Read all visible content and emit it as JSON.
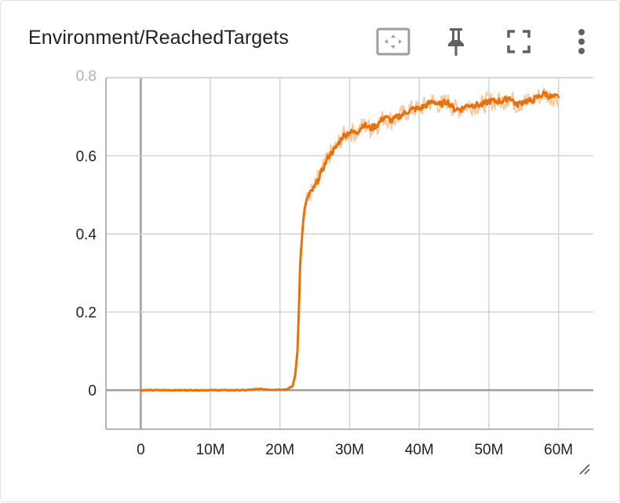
{
  "card": {
    "title": "Environment/ReachedTargets"
  },
  "toolbar": {
    "icons": [
      "fit-to-data-icon",
      "pin-icon",
      "fullscreen-icon",
      "more-vert-icon"
    ]
  },
  "colors": {
    "series": "#e8710a",
    "series_smoothed_band": "#f7c9a1",
    "grid": "#d2d2d2",
    "zero_line": "#9e9e9e",
    "axis": "#9e9e9e",
    "text": "#212121",
    "icon": "#616161"
  },
  "chart_data": {
    "type": "line",
    "title": "Environment/ReachedTargets",
    "xlabel": "",
    "ylabel": "",
    "xlim": [
      -5000000,
      65000000
    ],
    "ylim": [
      -0.1,
      0.8
    ],
    "x_ticks": [
      0,
      10000000,
      20000000,
      30000000,
      40000000,
      50000000,
      60000000
    ],
    "x_tick_labels": [
      "0",
      "10M",
      "20M",
      "30M",
      "40M",
      "50M",
      "60M"
    ],
    "y_ticks": [
      0,
      0.2,
      0.4,
      0.6,
      0.8
    ],
    "y_tick_labels": [
      "0",
      "0.2",
      "0.4",
      "0.6",
      "0.8"
    ],
    "grid": true,
    "series": [
      {
        "x": [
          0,
          5000000,
          10000000,
          15000000,
          17000000,
          19000000,
          21000000,
          21800000,
          22200000,
          22500000,
          22700000,
          22900000,
          23100000,
          23400000,
          23700000,
          24200000,
          25000000,
          26000000,
          27000000,
          28000000,
          29000000,
          30000000,
          31000000,
          32000000,
          33000000,
          34000000,
          35000000,
          36000000,
          37000000,
          38000000,
          39000000,
          40000000,
          41000000,
          42000000,
          43000000,
          44000000,
          45000000,
          46000000,
          47000000,
          48000000,
          49000000,
          50000000,
          51000000,
          52000000,
          53000000,
          54000000,
          55000000,
          56000000,
          57000000,
          58000000,
          59000000,
          60000000
        ],
        "y": [
          0.0,
          0.0,
          0.0,
          0.0,
          0.003,
          0.001,
          0.002,
          0.01,
          0.04,
          0.1,
          0.2,
          0.32,
          0.38,
          0.44,
          0.48,
          0.5,
          0.52,
          0.56,
          0.6,
          0.62,
          0.65,
          0.66,
          0.66,
          0.68,
          0.67,
          0.68,
          0.7,
          0.69,
          0.7,
          0.71,
          0.72,
          0.72,
          0.73,
          0.74,
          0.73,
          0.74,
          0.72,
          0.72,
          0.73,
          0.73,
          0.73,
          0.74,
          0.74,
          0.74,
          0.75,
          0.73,
          0.74,
          0.74,
          0.75,
          0.76,
          0.75,
          0.75
        ]
      }
    ]
  }
}
